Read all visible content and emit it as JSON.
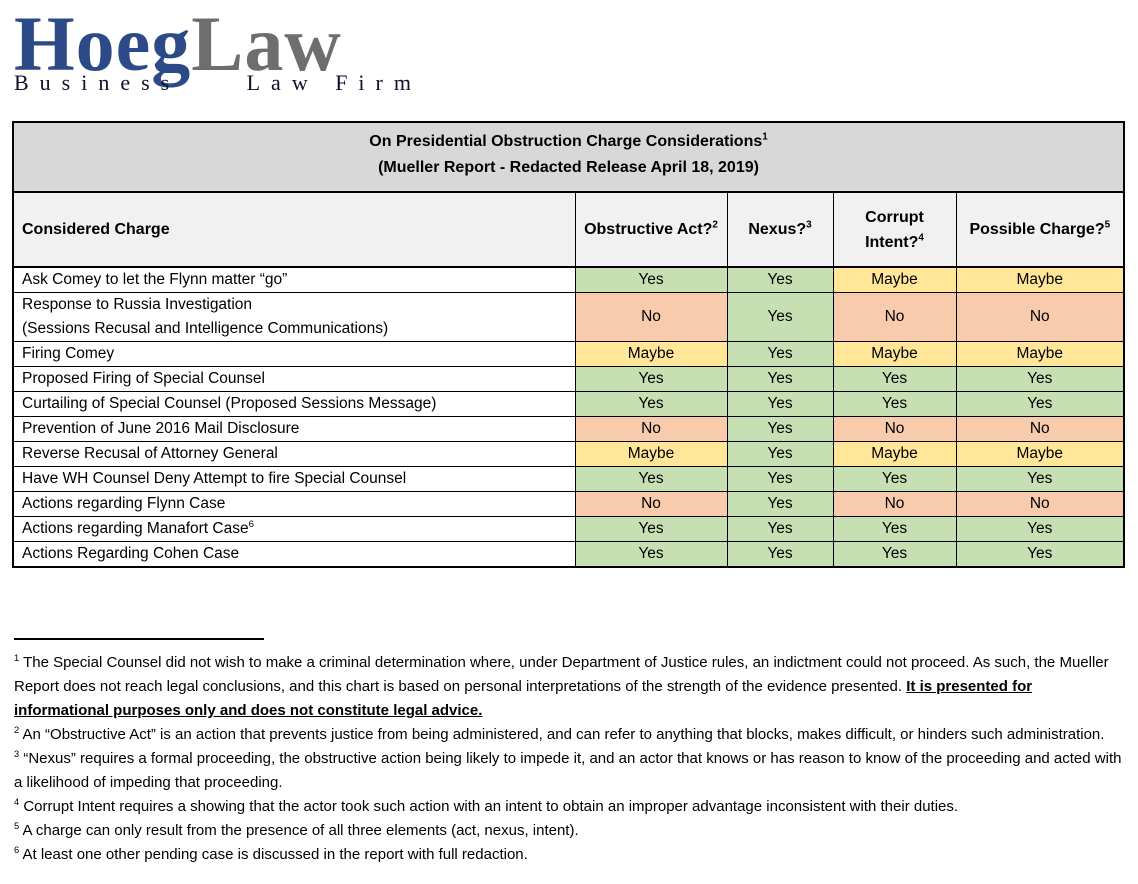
{
  "logo": {
    "name_primary": "Hoeg",
    "name_secondary": "Law",
    "tagline_left": "Business",
    "tagline_right": "Law Firm",
    "colors": {
      "primary_blue": "#2b4a87",
      "secondary_gray": "#6e6e6e",
      "tagline_dark": "#10102a"
    }
  },
  "table": {
    "title_line1": "On Presidential Obstruction Charge Considerations",
    "title_sup": "1",
    "title_line2": "(Mueller Report - Redacted Release April 18, 2019)",
    "columns": [
      {
        "label": "Considered Charge",
        "sup": ""
      },
      {
        "label": "Obstructive Act?",
        "sup": "2"
      },
      {
        "label": "Nexus?",
        "sup": "3"
      },
      {
        "label": "Corrupt Intent?",
        "sup": "4"
      },
      {
        "label": "Possible Charge?",
        "sup": "5"
      }
    ],
    "verdict_colors": {
      "Yes": "#c6e0b4",
      "No": "#f8cbad",
      "Maybe": "#ffe699"
    },
    "rows": [
      {
        "charge": "Ask Comey to let the Flynn matter “go”",
        "values": [
          "Yes",
          "Yes",
          "Maybe",
          "Maybe"
        ]
      },
      {
        "charge": "Response to Russia Investigation",
        "charge_line2": "(Sessions Recusal and Intelligence Communications)",
        "values": [
          "No",
          "Yes",
          "No",
          "No"
        ]
      },
      {
        "charge": "Firing Comey",
        "values": [
          "Maybe",
          "Yes",
          "Maybe",
          "Maybe"
        ]
      },
      {
        "charge": "Proposed Firing of Special Counsel",
        "values": [
          "Yes",
          "Yes",
          "Yes",
          "Yes"
        ]
      },
      {
        "charge": "Curtailing of Special Counsel (Proposed Sessions Message)",
        "values": [
          "Yes",
          "Yes",
          "Yes",
          "Yes"
        ]
      },
      {
        "charge": "Prevention of June 2016 Mail Disclosure",
        "values": [
          "No",
          "Yes",
          "No",
          "No"
        ]
      },
      {
        "charge": "Reverse Recusal of Attorney General",
        "values": [
          "Maybe",
          "Yes",
          "Maybe",
          "Maybe"
        ]
      },
      {
        "charge": "Have WH Counsel Deny Attempt to fire Special Counsel",
        "values": [
          "Yes",
          "Yes",
          "Yes",
          "Yes"
        ]
      },
      {
        "charge": "Actions regarding Flynn Case",
        "values": [
          "No",
          "Yes",
          "No",
          "No"
        ]
      },
      {
        "charge": "Actions regarding Manafort Case",
        "charge_sup": "6",
        "values": [
          "Yes",
          "Yes",
          "Yes",
          "Yes"
        ]
      },
      {
        "charge": "Actions Regarding Cohen Case",
        "values": [
          "Yes",
          "Yes",
          "Yes",
          "Yes"
        ]
      }
    ]
  },
  "footnotes": [
    {
      "sup": "1",
      "text": "The Special Counsel did not wish to make a criminal determination where, under Department of Justice rules, an indictment could not proceed.  As such, the Mueller Report does not reach legal conclusions, and this chart is based on personal interpretations of the strength of the evidence presented.  ",
      "emphasis": "It is presented for informational purposes only and does not constitute legal advice."
    },
    {
      "sup": "2",
      "text": "An “Obstructive Act” is an action that prevents justice from being administered, and can refer to anything that blocks, makes difficult, or hinders such administration."
    },
    {
      "sup": "3",
      "text": "“Nexus” requires a formal proceeding, the obstructive action being likely to impede it, and an actor that knows or has reason to know of the proceeding and acted with a likelihood of impeding that proceeding."
    },
    {
      "sup": "4",
      "text": "Corrupt Intent requires a showing that the actor took such action with an intent to obtain an improper advantage inconsistent with their duties."
    },
    {
      "sup": "5",
      "text": "A charge can only result from the presence of all three elements (act, nexus, intent)."
    },
    {
      "sup": "6",
      "text": "At least one other pending case is discussed in the report with full redaction."
    }
  ]
}
